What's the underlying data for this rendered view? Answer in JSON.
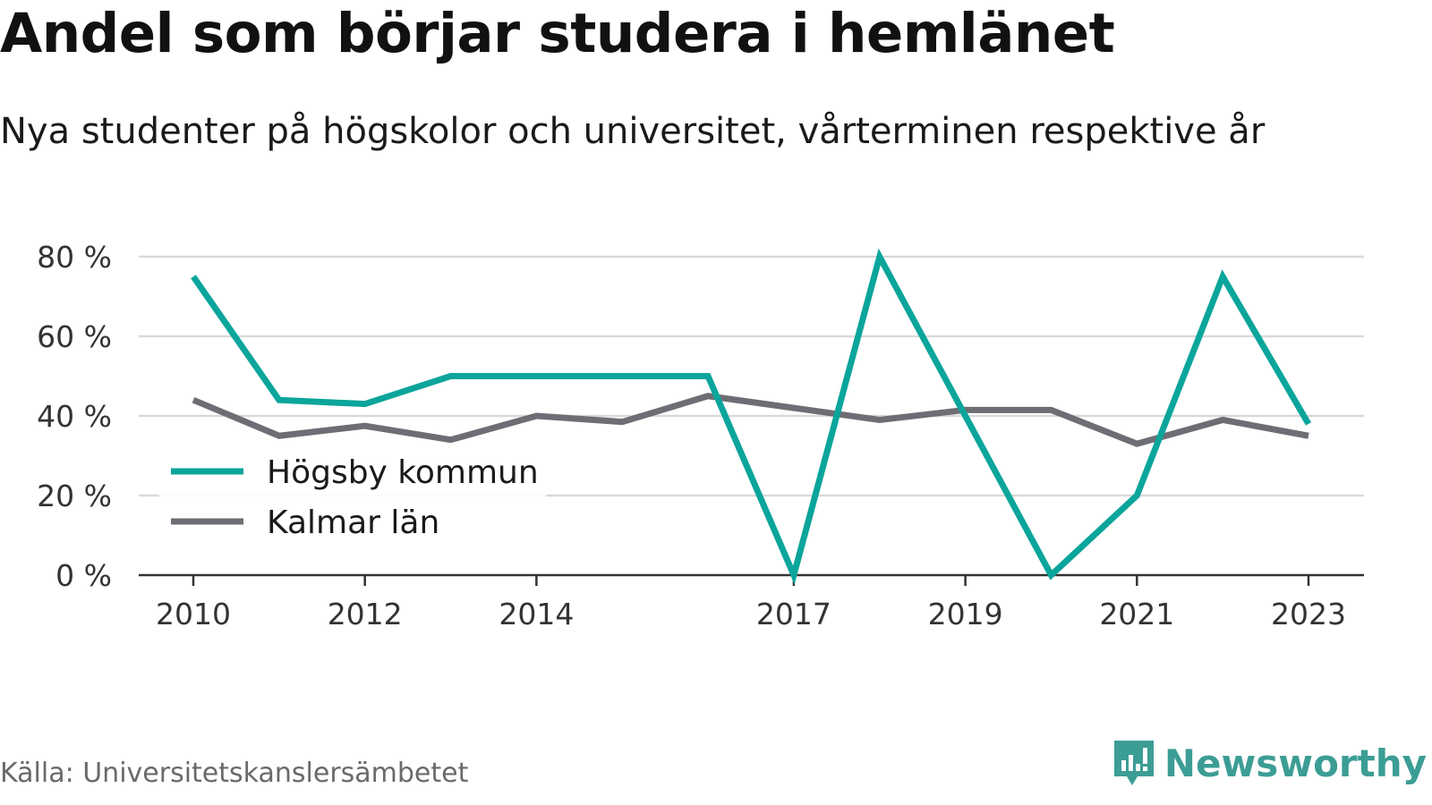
{
  "title": "Andel som börjar studera i hemlänet",
  "subtitle": "Nya studenter på högskolor och universitet, vårterminen respektive år",
  "source": "Källa: Universitetskanslersämbetet",
  "brand": "Newsworthy",
  "colors": {
    "series1": "#0ba59b",
    "series2": "#6e6d74",
    "grid": "#d9d9d9",
    "axis": "#333333",
    "brand": "#3c9d95"
  },
  "chart_data": {
    "type": "line",
    "x": [
      2010,
      2011,
      2012,
      2013,
      2014,
      2015,
      2016,
      2017,
      2018,
      2019,
      2020,
      2021,
      2022,
      2023
    ],
    "x_tick_labels": [
      "2010",
      "2012",
      "2014",
      "2017",
      "2019",
      "2021",
      "2023"
    ],
    "y_tick_labels": [
      "0 %",
      "20 %",
      "40 %",
      "60 %",
      "80 %"
    ],
    "y_ticks": [
      0,
      20,
      40,
      60,
      80
    ],
    "ylim": [
      0,
      80
    ],
    "legend_position": "lower-left",
    "grid": true,
    "series": [
      {
        "name": "Högsby kommun",
        "color": "#0ba59b",
        "values": [
          75,
          44,
          43,
          50,
          50,
          50,
          50,
          0,
          80,
          40,
          0,
          20,
          75,
          38
        ]
      },
      {
        "name": "Kalmar län",
        "color": "#6e6d74",
        "values": [
          44,
          35,
          37.5,
          34,
          40,
          38.5,
          45,
          42,
          39,
          41.5,
          41.5,
          33,
          39,
          35
        ]
      }
    ]
  }
}
